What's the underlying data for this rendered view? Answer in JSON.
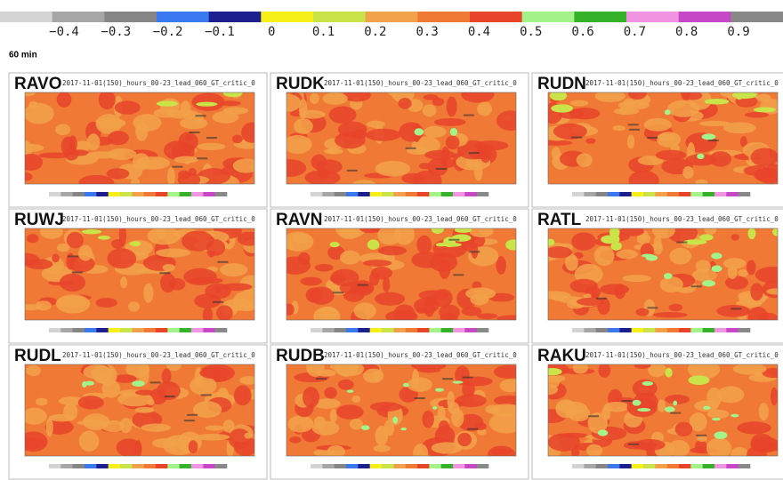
{
  "colorbar": {
    "colors": [
      "#d4d4d4",
      "#a6a6a6",
      "#858585",
      "#3a78f0",
      "#1c1f8e",
      "#f6ef18",
      "#c9e348",
      "#f2a24a",
      "#f07a35",
      "#e8442a",
      "#a3f28a",
      "#36b22a",
      "#f294e2",
      "#c648c6",
      "#888888"
    ],
    "ticks": [
      {
        "value": -0.4,
        "label": "−0.4"
      },
      {
        "value": -0.3,
        "label": "−0.3"
      },
      {
        "value": -0.2,
        "label": "−0.2"
      },
      {
        "value": -0.1,
        "label": "−0.1"
      },
      0,
      0.1,
      0.2,
      0.3,
      0.4,
      0.5,
      0.6,
      0.7,
      0.8,
      0.9
    ]
  },
  "lead_label": "60 min",
  "panels": [
    {
      "label": "RAVO",
      "subtitle": "2017-11-01(150)_hours_00-23_lead_060_GT_critic_0"
    },
    {
      "label": "RUDK",
      "subtitle": "2017-11-01(150)_hours_00-23_lead_060_GT_critic_0"
    },
    {
      "label": "RUDN",
      "subtitle": "2017-11-01(150)_hours_00-23_lead_060_GT_critic_0"
    },
    {
      "label": "RUWJ",
      "subtitle": "2017-11-01(150)_hours_00-23_lead_060_GT_critic_0"
    },
    {
      "label": "RAVN",
      "subtitle": "2017-11-01(150)_hours_00-23_lead_060_GT_critic_0"
    },
    {
      "label": "RATL",
      "subtitle": "2017-11-01(150)_hours_00-23_lead_060_GT_critic_0"
    },
    {
      "label": "RUDL",
      "subtitle": "2017-11-01(150)_hours_00-23_lead_060_GT_critic_0"
    },
    {
      "label": "RUDB",
      "subtitle": "2017-11-01(150)_hours_00-23_lead_060_GT_critic_0"
    },
    {
      "label": "RAKU",
      "subtitle": "2017-11-01(150)_hours_00-23_lead_060_GT_critic_0"
    }
  ]
}
